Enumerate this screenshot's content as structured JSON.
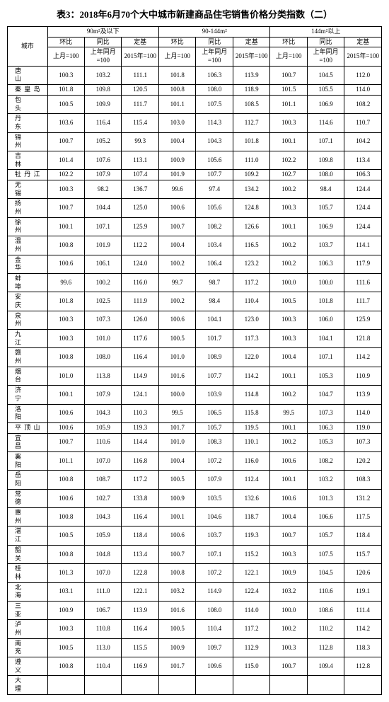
{
  "title": "表3：2018年6月70个大中城市新建商品住宅销售价格分类指数（二）",
  "headers": {
    "city": "城市",
    "g1": "90m²及以下",
    "g2": "90-144m²",
    "g3": "144m²以上",
    "hb": "环比",
    "tb": "同比",
    "dj": "定基",
    "hb_sub": "上月=100",
    "tb_sub": "上年同月=100",
    "dj_sub": "2015年=100"
  },
  "rows": [
    {
      "c": "唐　　山",
      "v": [
        "100.3",
        "103.2",
        "111.1",
        "101.8",
        "106.3",
        "113.9",
        "100.7",
        "104.5",
        "112.0"
      ]
    },
    {
      "c": "秦 皇 岛",
      "v": [
        "101.8",
        "109.8",
        "120.5",
        "100.8",
        "108.0",
        "118.9",
        "101.5",
        "105.5",
        "114.0"
      ]
    },
    {
      "c": "包　　头",
      "v": [
        "100.5",
        "109.9",
        "111.7",
        "101.1",
        "107.5",
        "108.5",
        "101.1",
        "106.9",
        "108.2"
      ]
    },
    {
      "c": "丹　　东",
      "v": [
        "103.6",
        "116.4",
        "115.4",
        "103.0",
        "114.3",
        "112.7",
        "100.3",
        "114.6",
        "110.7"
      ]
    },
    {
      "c": "锦　　州",
      "v": [
        "100.7",
        "105.2",
        "99.3",
        "100.4",
        "104.3",
        "101.8",
        "100.1",
        "107.1",
        "104.2"
      ]
    },
    {
      "c": "吉　　林",
      "v": [
        "101.4",
        "107.6",
        "113.1",
        "100.9",
        "105.6",
        "111.0",
        "102.2",
        "109.8",
        "113.4"
      ]
    },
    {
      "c": "牡 丹 江",
      "v": [
        "102.2",
        "107.9",
        "107.4",
        "101.9",
        "107.7",
        "109.2",
        "102.7",
        "108.0",
        "106.3"
      ]
    },
    {
      "c": "无　　锡",
      "v": [
        "100.3",
        "98.2",
        "136.7",
        "99.6",
        "97.4",
        "134.2",
        "100.2",
        "98.4",
        "124.4"
      ]
    },
    {
      "c": "扬　　州",
      "v": [
        "100.7",
        "104.4",
        "125.0",
        "100.6",
        "105.6",
        "124.8",
        "100.3",
        "105.7",
        "124.4"
      ]
    },
    {
      "c": "徐　　州",
      "v": [
        "100.1",
        "107.1",
        "125.9",
        "100.7",
        "108.2",
        "126.6",
        "100.1",
        "106.9",
        "124.4"
      ]
    },
    {
      "c": "温　　州",
      "v": [
        "100.8",
        "101.9",
        "112.2",
        "100.4",
        "103.4",
        "116.5",
        "100.2",
        "103.7",
        "114.1"
      ]
    },
    {
      "c": "金　　华",
      "v": [
        "100.6",
        "106.1",
        "124.0",
        "100.2",
        "106.4",
        "123.2",
        "100.2",
        "106.3",
        "117.9"
      ]
    },
    {
      "c": "蚌　　埠",
      "v": [
        "99.6",
        "100.2",
        "116.0",
        "99.7",
        "98.7",
        "117.2",
        "100.0",
        "100.0",
        "111.6"
      ]
    },
    {
      "c": "安　　庆",
      "v": [
        "101.8",
        "102.5",
        "111.9",
        "100.2",
        "98.4",
        "110.4",
        "100.5",
        "101.8",
        "111.7"
      ]
    },
    {
      "c": "泉　　州",
      "v": [
        "100.3",
        "107.3",
        "126.0",
        "100.6",
        "104.1",
        "123.0",
        "100.3",
        "106.0",
        "125.9"
      ]
    },
    {
      "c": "九　　江",
      "v": [
        "100.3",
        "101.0",
        "117.6",
        "100.5",
        "101.7",
        "117.3",
        "100.3",
        "104.1",
        "121.8"
      ]
    },
    {
      "c": "赣　　州",
      "v": [
        "100.8",
        "108.0",
        "116.4",
        "101.0",
        "108.9",
        "122.0",
        "100.4",
        "107.1",
        "114.2"
      ]
    },
    {
      "c": "烟　　台",
      "v": [
        "101.0",
        "113.8",
        "114.9",
        "101.6",
        "107.7",
        "114.2",
        "100.1",
        "105.3",
        "110.9"
      ]
    },
    {
      "c": "济　　宁",
      "v": [
        "100.1",
        "107.9",
        "124.1",
        "100.0",
        "103.9",
        "114.8",
        "100.2",
        "104.7",
        "113.9"
      ]
    },
    {
      "c": "洛　　阳",
      "v": [
        "100.6",
        "104.3",
        "110.3",
        "99.5",
        "106.5",
        "115.8",
        "99.5",
        "107.3",
        "114.0"
      ]
    },
    {
      "c": "平 顶 山",
      "v": [
        "100.6",
        "105.9",
        "119.3",
        "101.7",
        "105.7",
        "119.5",
        "100.1",
        "106.3",
        "119.0"
      ]
    },
    {
      "c": "宜　　昌",
      "v": [
        "100.7",
        "110.6",
        "114.4",
        "101.0",
        "108.3",
        "110.1",
        "100.2",
        "105.3",
        "107.3"
      ]
    },
    {
      "c": "襄　　阳",
      "v": [
        "101.1",
        "107.0",
        "116.8",
        "100.4",
        "107.2",
        "116.0",
        "100.6",
        "108.2",
        "120.2"
      ]
    },
    {
      "c": "岳　　阳",
      "v": [
        "100.8",
        "108.7",
        "117.2",
        "100.5",
        "107.9",
        "112.4",
        "100.1",
        "103.2",
        "108.3"
      ]
    },
    {
      "c": "常　　德",
      "v": [
        "100.6",
        "102.7",
        "133.8",
        "100.9",
        "103.5",
        "132.6",
        "100.6",
        "101.3",
        "131.2"
      ]
    },
    {
      "c": "惠　　州",
      "v": [
        "100.8",
        "104.3",
        "116.4",
        "100.1",
        "104.6",
        "118.7",
        "100.4",
        "106.6",
        "117.5"
      ]
    },
    {
      "c": "湛　　江",
      "v": [
        "100.5",
        "105.9",
        "118.4",
        "100.6",
        "103.7",
        "119.3",
        "100.7",
        "105.7",
        "118.4"
      ]
    },
    {
      "c": "韶　　关",
      "v": [
        "100.8",
        "104.8",
        "113.4",
        "100.7",
        "107.1",
        "115.2",
        "100.3",
        "107.5",
        "115.7"
      ]
    },
    {
      "c": "桂　　林",
      "v": [
        "101.3",
        "107.0",
        "122.8",
        "100.8",
        "107.2",
        "122.1",
        "100.9",
        "104.5",
        "120.6"
      ]
    },
    {
      "c": "北　　海",
      "v": [
        "103.1",
        "111.0",
        "122.1",
        "103.2",
        "114.9",
        "122.4",
        "103.2",
        "110.6",
        "119.1"
      ]
    },
    {
      "c": "三　　亚",
      "v": [
        "100.9",
        "106.7",
        "113.9",
        "101.6",
        "108.0",
        "114.0",
        "100.0",
        "108.6",
        "111.4"
      ]
    },
    {
      "c": "泸　　州",
      "v": [
        "100.3",
        "110.8",
        "116.4",
        "100.5",
        "110.4",
        "117.2",
        "100.2",
        "110.2",
        "114.2"
      ]
    },
    {
      "c": "南　　充",
      "v": [
        "100.5",
        "113.0",
        "115.5",
        "100.9",
        "109.7",
        "112.9",
        "100.3",
        "112.8",
        "118.3"
      ]
    },
    {
      "c": "遵　　义",
      "v": [
        "100.8",
        "110.4",
        "116.9",
        "101.7",
        "109.6",
        "115.0",
        "100.7",
        "109.4",
        "112.8"
      ]
    },
    {
      "c": "大　　理",
      "v": [
        "",
        "",
        "",
        "",
        "",
        "",
        "",
        "",
        ""
      ]
    }
  ]
}
